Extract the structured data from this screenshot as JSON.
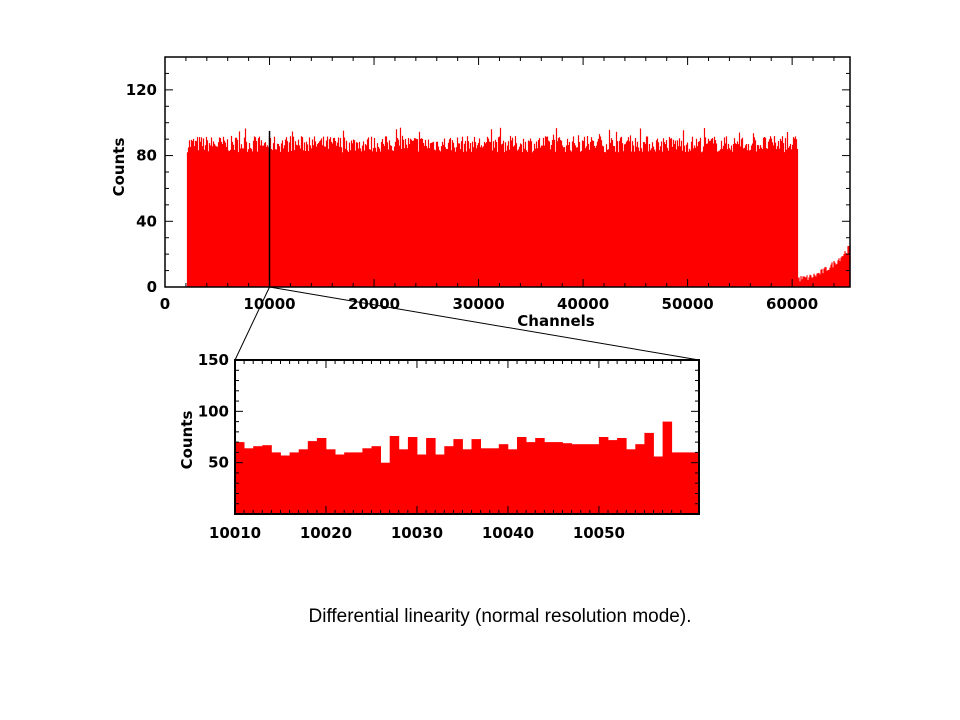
{
  "caption": "Differential linearity (normal resolution mode).",
  "colors": {
    "bars": "#ff0000",
    "axis": "#000000",
    "background": "#ffffff"
  },
  "chart_data": [
    {
      "type": "bar",
      "title": "",
      "xlabel": "Channels",
      "ylabel": "Counts",
      "xlim": [
        0,
        65536
      ],
      "ylim": [
        0,
        140
      ],
      "xticks": [
        0,
        10000,
        20000,
        30000,
        40000,
        50000,
        60000
      ],
      "xtick_labels": [
        "0",
        "10000",
        "20000",
        "30000",
        "40000",
        "50000",
        "60000"
      ],
      "yticks": [
        0,
        40,
        80,
        120
      ],
      "ytick_labels": [
        "0",
        "40",
        "80",
        "120"
      ],
      "grid": false,
      "series": [
        {
          "segments": [
            {
              "x_start": 2100,
              "x_end": 60500,
              "level_mean": 87,
              "level_min": 82,
              "level_max": 97
            },
            {
              "x_start": 60500,
              "x_end": 65536,
              "level_start": 5,
              "level_end": 25
            }
          ]
        }
      ],
      "annotations": [
        {
          "type": "marker-line",
          "x": 10000
        }
      ]
    },
    {
      "type": "bar",
      "title": "",
      "xlabel": "",
      "ylabel": "Counts",
      "xlim": [
        10010,
        10061
      ],
      "ylim": [
        0,
        150
      ],
      "xticks": [
        10010,
        10020,
        10030,
        10040,
        10050
      ],
      "xtick_labels": [
        "10010",
        "10020",
        "10030",
        "10040",
        "10050"
      ],
      "yticks": [
        50,
        100,
        150
      ],
      "ytick_labels": [
        "50",
        "100",
        "150"
      ],
      "grid": false,
      "x": [
        10010,
        10011,
        10012,
        10013,
        10014,
        10015,
        10016,
        10017,
        10018,
        10019,
        10020,
        10021,
        10022,
        10023,
        10024,
        10025,
        10026,
        10027,
        10028,
        10029,
        10030,
        10031,
        10032,
        10033,
        10034,
        10035,
        10036,
        10037,
        10038,
        10039,
        10040,
        10041,
        10042,
        10043,
        10044,
        10045,
        10046,
        10047,
        10048,
        10049,
        10050,
        10051,
        10052,
        10053,
        10054,
        10055,
        10056,
        10057,
        10058,
        10059,
        10060
      ],
      "values": [
        70,
        64,
        66,
        67,
        60,
        57,
        60,
        63,
        71,
        74,
        63,
        58,
        60,
        60,
        64,
        66,
        50,
        76,
        63,
        75,
        58,
        74,
        58,
        66,
        73,
        63,
        73,
        64,
        64,
        68,
        63,
        75,
        70,
        74,
        70,
        70,
        69,
        68,
        68,
        68,
        75,
        72,
        74,
        63,
        68,
        79,
        56,
        90,
        60,
        60,
        60
      ]
    }
  ]
}
